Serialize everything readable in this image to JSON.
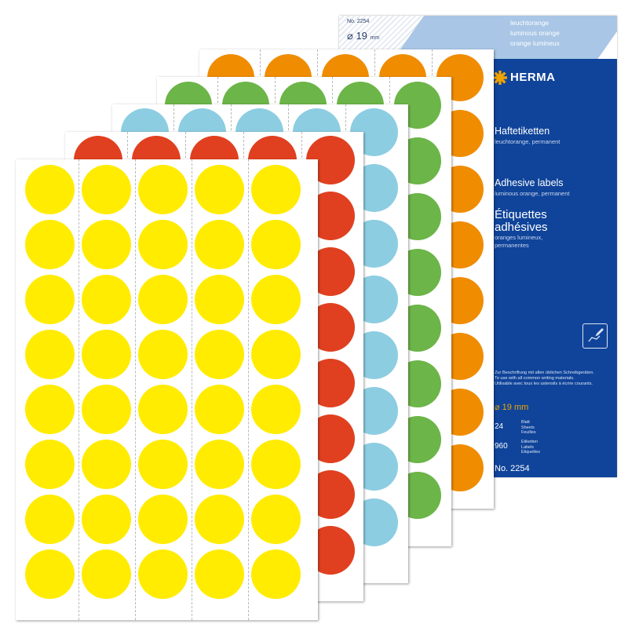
{
  "package": {
    "top_number": "No. 2254",
    "top_diameter": "⌀ 19",
    "top_diameter_unit": "mm",
    "lang_lines": [
      "leuchtorange",
      "luminous orange",
      "orange lumineux"
    ],
    "brand": "HERMA",
    "title_de": "Haftetiketten",
    "sub_de": "leuchtorange, permanent",
    "title_en": "Adhesive labels",
    "sub_en": "luminous orange, permanent",
    "title_fr_1": "Étiquettes",
    "title_fr_2": "adhésives",
    "sub_fr_1": "oranges lumineux,",
    "sub_fr_2": "permanentes",
    "usage_lines": [
      "Zur Beschriftung mit allen üblichen Schreibgeräten.",
      "To use with all common writing materials.",
      "Utilisable avec tous les ustensils à écrire courants."
    ],
    "diameter": "⌀ 19 mm",
    "sheets_count": "24",
    "sheets_units": [
      "Blatt",
      "Sheets",
      "Feuilles"
    ],
    "labels_count": "960",
    "labels_units": [
      "Etiketten",
      "Labels",
      "Etiquettes"
    ],
    "article_no": "No. 2254",
    "colors": {
      "panel": "#10449a",
      "accent": "#f0a400",
      "stripe": "#a9c6e6"
    },
    "icons": [
      "herma-star-logo-icon",
      "pen-writing-icon"
    ]
  },
  "sheets": [
    {
      "name": "orange-sheet",
      "color": "#f08c00"
    },
    {
      "name": "green-sheet",
      "color": "#6cb548"
    },
    {
      "name": "blue-sheet",
      "color": "#8ccde2"
    },
    {
      "name": "red-sheet",
      "color": "#e0401f"
    },
    {
      "name": "yellow-sheet",
      "color": "#ffec00"
    }
  ],
  "sheet_grid": {
    "columns": 5,
    "rows": 8
  }
}
